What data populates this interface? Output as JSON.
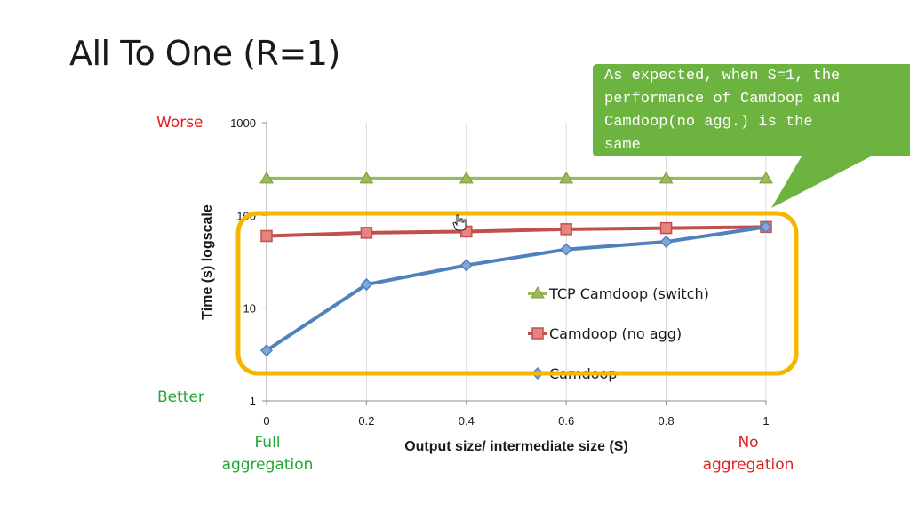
{
  "slide": {
    "title": "All To One (R=1)",
    "callout": "As expected, when S=1, the\nperformance of Camdoop and\nCamdoop(no agg.) is the\nsame",
    "labels": {
      "worse": "Worse",
      "better": "Better",
      "full_aggregation": "Full\naggregation",
      "no_aggregation": "No\naggregation"
    },
    "colors": {
      "callout_fill": "#6db33f",
      "highlight_box": "#f5b800",
      "worse": "#e02020",
      "better": "#1fa833"
    }
  },
  "chart_data": {
    "type": "line",
    "xlabel": "Output size/ intermediate size (S)",
    "ylabel": "Time (s) logscale",
    "x": [
      0,
      0.2,
      0.4,
      0.6,
      0.8,
      1
    ],
    "x_ticks": [
      "0",
      "0.2",
      "0.4",
      "0.6",
      "0.8",
      "1"
    ],
    "y_scale": "log",
    "ylim": [
      1,
      1000
    ],
    "y_ticks": [
      1,
      10,
      100,
      1000
    ],
    "y_tick_labels": [
      "1",
      "10",
      "100",
      "1000"
    ],
    "grid": "vertical",
    "legend_position": "center-right",
    "series": [
      {
        "name": "TCP Camdoop (switch)",
        "values": [
          250,
          250,
          250,
          250,
          250,
          250
        ],
        "color": "#9bbb59",
        "marker": "triangle"
      },
      {
        "name": "Camdoop (no agg)",
        "values": [
          60,
          65,
          67,
          71,
          73,
          75
        ],
        "color": "#c0504d",
        "marker": "square"
      },
      {
        "name": "Camdoop",
        "values": [
          3.5,
          18,
          29,
          43,
          52,
          75
        ],
        "color": "#4f81bd",
        "marker": "diamond"
      }
    ]
  }
}
